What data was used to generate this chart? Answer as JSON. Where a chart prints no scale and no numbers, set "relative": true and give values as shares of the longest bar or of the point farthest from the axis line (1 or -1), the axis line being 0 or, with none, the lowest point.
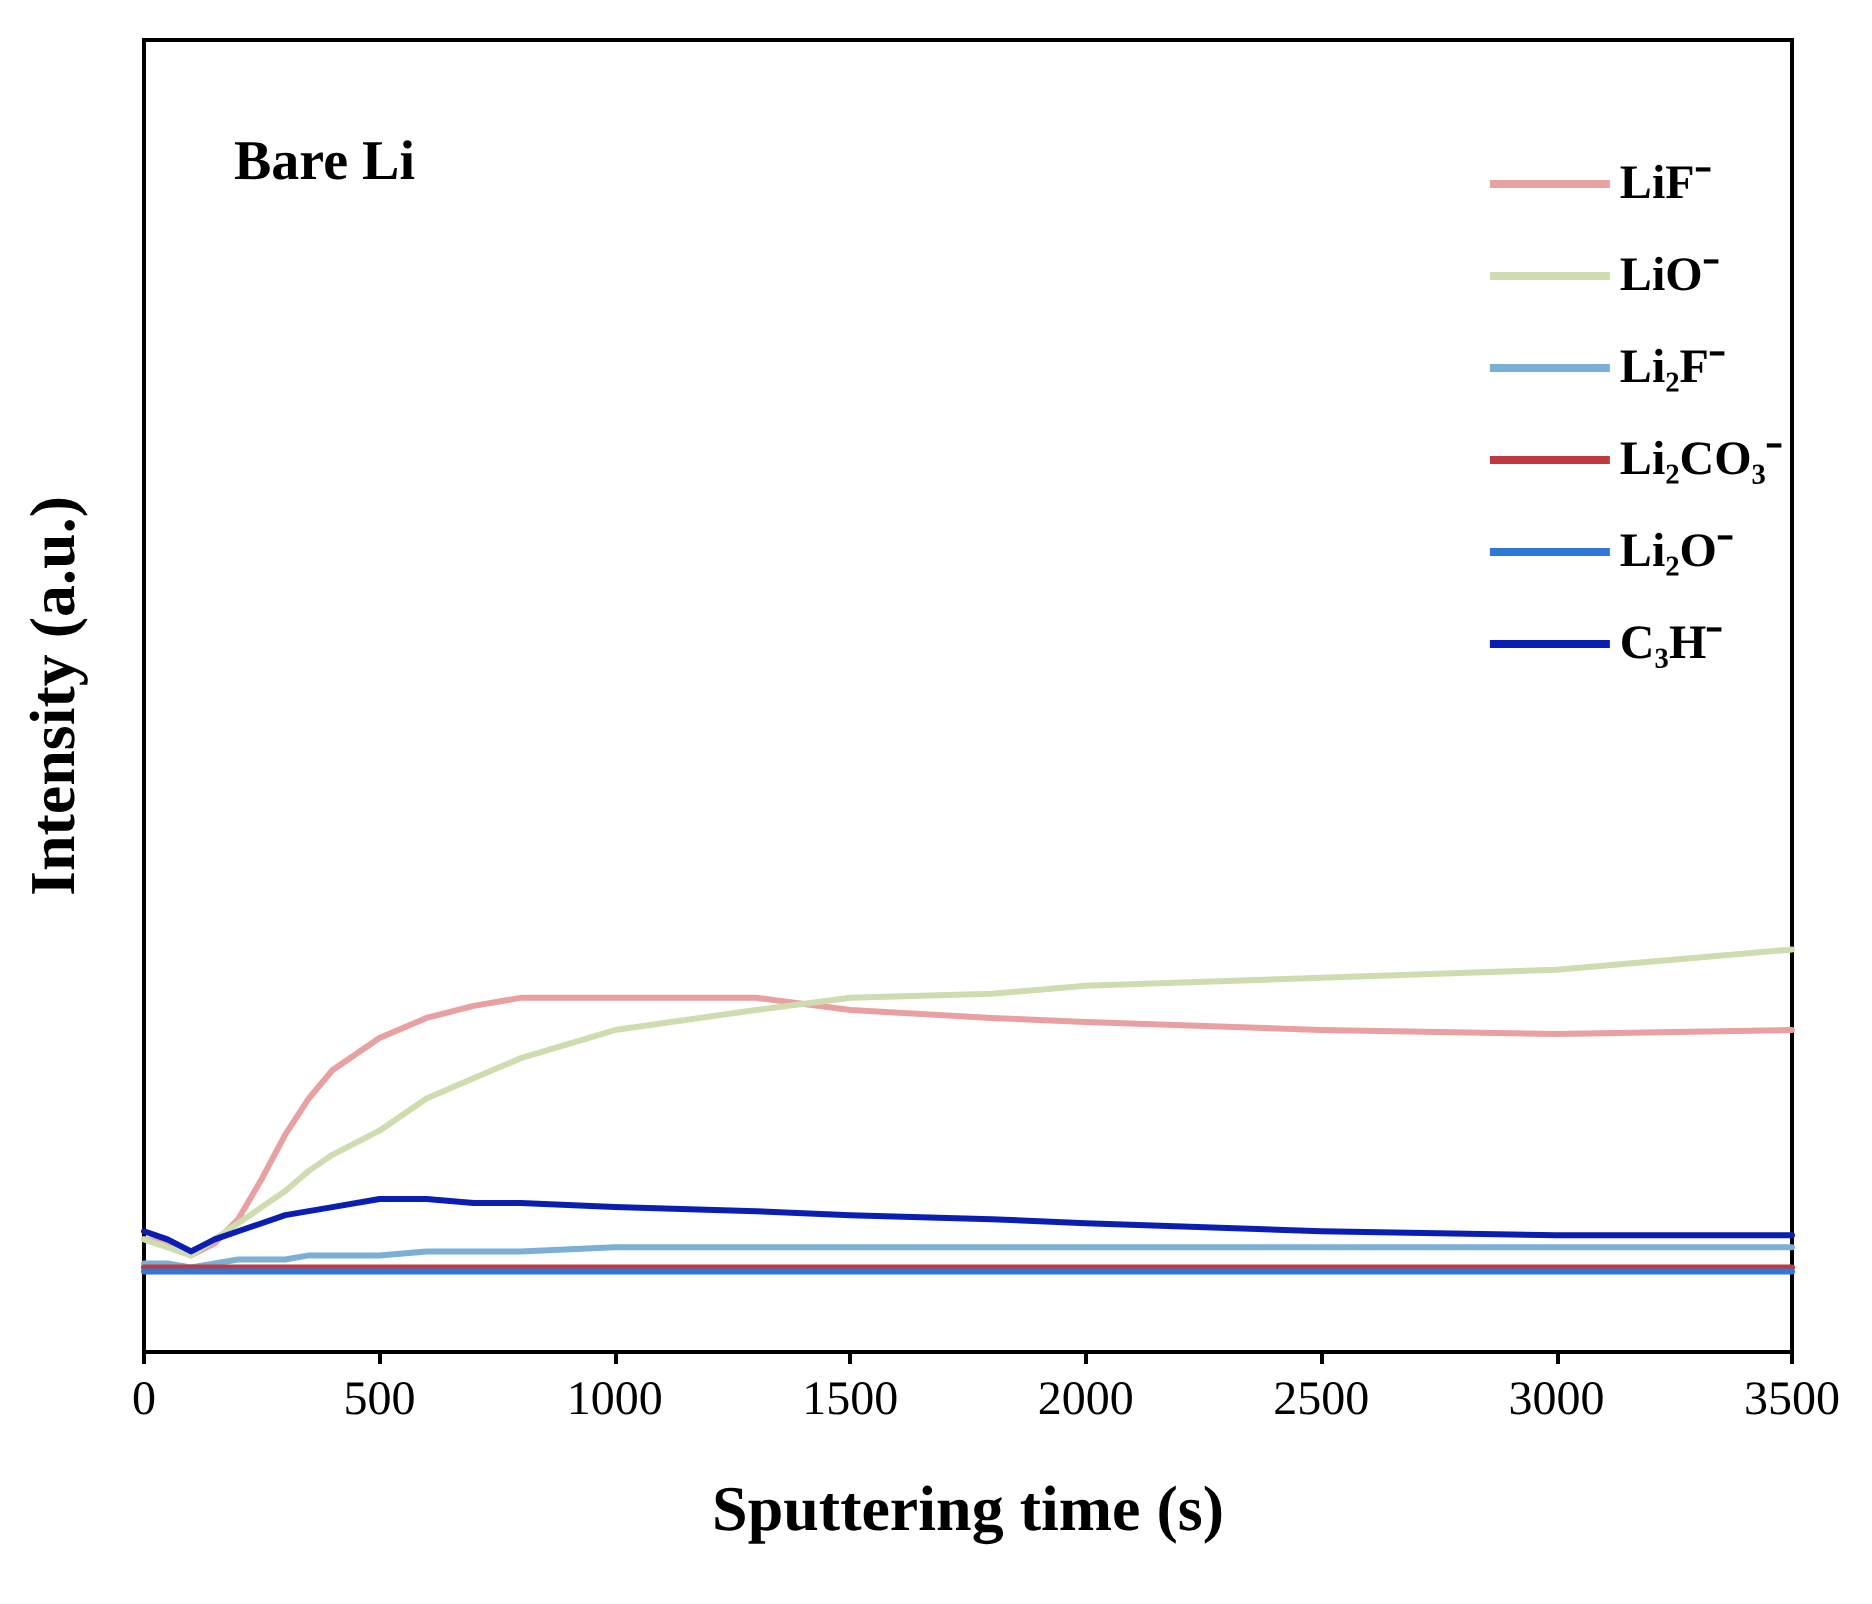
{
  "chart_data": {
    "type": "line",
    "title": "Bare Li",
    "xlabel": "Sputtering time (s)",
    "ylabel": "Intensity (a.u.)",
    "x": [
      0,
      50,
      100,
      150,
      200,
      250,
      300,
      350,
      400,
      500,
      600,
      700,
      800,
      1000,
      1300,
      1500,
      1800,
      2000,
      2500,
      3000,
      3500
    ],
    "xlim": [
      0,
      3500
    ],
    "xticks": [
      0,
      500,
      1000,
      1500,
      2000,
      2500,
      3000,
      3500
    ],
    "relative": true,
    "grid": false,
    "legend": "top right",
    "marker": "none",
    "line_style": "solid",
    "series": [
      {
        "name": "LiF⁻",
        "color": "#e8a0a0",
        "values": [
          0.28,
          0.27,
          0.24,
          0.27,
          0.33,
          0.43,
          0.54,
          0.63,
          0.7,
          0.78,
          0.83,
          0.86,
          0.88,
          0.88,
          0.88,
          0.85,
          0.83,
          0.82,
          0.8,
          0.79,
          0.8
        ]
      },
      {
        "name": "LiO⁻",
        "color": "#cfdcb0",
        "values": [
          0.28,
          0.26,
          0.24,
          0.28,
          0.32,
          0.36,
          0.4,
          0.45,
          0.49,
          0.55,
          0.63,
          0.68,
          0.73,
          0.8,
          0.85,
          0.88,
          0.89,
          0.91,
          0.93,
          0.95,
          1
        ]
      },
      {
        "name": "Li₂F⁻",
        "color": "#7ab0d6",
        "values": [
          0.22,
          0.22,
          0.21,
          0.22,
          0.23,
          0.23,
          0.23,
          0.24,
          0.24,
          0.24,
          0.25,
          0.25,
          0.25,
          0.26,
          0.26,
          0.26,
          0.26,
          0.26,
          0.26,
          0.26,
          0.26
        ]
      },
      {
        "name": "Li₂CO₃⁻",
        "color": "#c0393f",
        "values": [
          0.21,
          0.21,
          0.21,
          0.21,
          0.21,
          0.21,
          0.21,
          0.21,
          0.21,
          0.21,
          0.21,
          0.21,
          0.21,
          0.21,
          0.21,
          0.21,
          0.21,
          0.21,
          0.21,
          0.21,
          0.21
        ]
      },
      {
        "name": "Li₂O⁻",
        "color": "#2f78d8",
        "values": [
          0.2,
          0.2,
          0.2,
          0.2,
          0.2,
          0.2,
          0.2,
          0.2,
          0.2,
          0.2,
          0.2,
          0.2,
          0.2,
          0.2,
          0.2,
          0.2,
          0.2,
          0.2,
          0.2,
          0.2,
          0.2
        ]
      },
      {
        "name": "C₃H⁻",
        "color": "#0a1eb4",
        "values": [
          0.3,
          0.28,
          0.25,
          0.28,
          0.3,
          0.32,
          0.34,
          0.35,
          0.36,
          0.38,
          0.38,
          0.37,
          0.37,
          0.36,
          0.35,
          0.34,
          0.33,
          0.32,
          0.3,
          0.29,
          0.29
        ]
      }
    ]
  }
}
